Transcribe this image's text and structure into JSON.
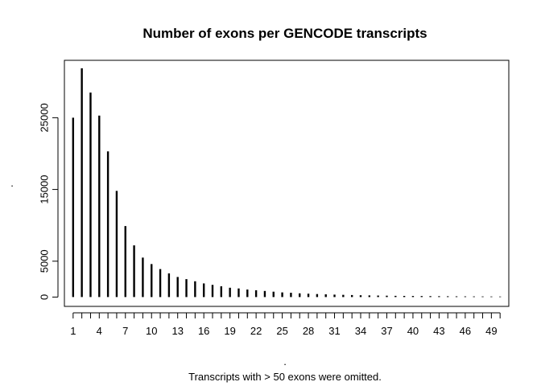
{
  "chart_data": {
    "type": "bar",
    "style": "histogram-lines",
    "title": "Number of exons per GENCODE transcripts",
    "xlabel": ".",
    "ylabel": ".",
    "note": "Transcripts with > 50 exons were omitted.",
    "x": [
      1,
      2,
      3,
      4,
      5,
      6,
      7,
      8,
      9,
      10,
      11,
      12,
      13,
      14,
      15,
      16,
      17,
      18,
      19,
      20,
      21,
      22,
      23,
      24,
      25,
      26,
      27,
      28,
      29,
      30,
      31,
      32,
      33,
      34,
      35,
      36,
      37,
      38,
      39,
      40,
      41,
      42,
      43,
      44,
      45,
      46,
      47,
      48,
      49,
      50
    ],
    "values": [
      25000,
      31900,
      28500,
      25300,
      20300,
      14800,
      9900,
      7200,
      5500,
      4600,
      3900,
      3300,
      2800,
      2500,
      2200,
      1900,
      1700,
      1500,
      1300,
      1200,
      1050,
      950,
      850,
      750,
      650,
      600,
      520,
      470,
      420,
      380,
      340,
      310,
      280,
      250,
      230,
      210,
      190,
      170,
      160,
      150,
      140,
      130,
      120,
      110,
      100,
      95,
      90,
      85,
      80,
      75
    ],
    "x_ticks": [
      1,
      4,
      7,
      10,
      13,
      16,
      19,
      22,
      25,
      28,
      31,
      34,
      37,
      40,
      43,
      46,
      49
    ],
    "y_ticks": [
      0,
      5000,
      15000,
      25000
    ],
    "xlim": [
      0,
      51
    ],
    "ylim": [
      -1300,
      33000
    ],
    "color": "#000000"
  }
}
